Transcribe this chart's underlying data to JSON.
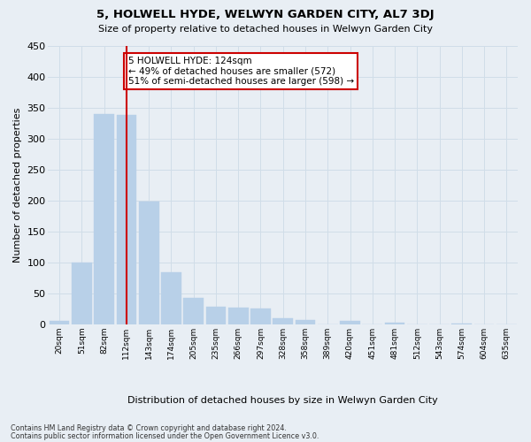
{
  "title": "5, HOLWELL HYDE, WELWYN GARDEN CITY, AL7 3DJ",
  "subtitle": "Size of property relative to detached houses in Welwyn Garden City",
  "xlabel": "Distribution of detached houses by size in Welwyn Garden City",
  "ylabel": "Number of detached properties",
  "bin_labels": [
    "20sqm",
    "51sqm",
    "82sqm",
    "112sqm",
    "143sqm",
    "174sqm",
    "205sqm",
    "235sqm",
    "266sqm",
    "297sqm",
    "328sqm",
    "358sqm",
    "389sqm",
    "420sqm",
    "451sqm",
    "481sqm",
    "512sqm",
    "543sqm",
    "574sqm",
    "604sqm",
    "635sqm"
  ],
  "bar_values": [
    5,
    100,
    340,
    338,
    198,
    84,
    42,
    28,
    27,
    25,
    10,
    6,
    0,
    5,
    0,
    2,
    0,
    0,
    1,
    0,
    0
  ],
  "bar_color": "#b8d0e8",
  "bar_edge_color": "#b8d0e8",
  "grid_color": "#d0dde8",
  "vline_x_index": 3,
  "vline_color": "#cc0000",
  "annotation_text": "5 HOLWELL HYDE: 124sqm\n← 49% of detached houses are smaller (572)\n51% of semi-detached houses are larger (598) →",
  "annotation_box_color": "white",
  "annotation_box_edge": "#cc0000",
  "ylim": [
    0,
    450
  ],
  "yticks": [
    0,
    50,
    100,
    150,
    200,
    250,
    300,
    350,
    400,
    450
  ],
  "footer1": "Contains HM Land Registry data © Crown copyright and database right 2024.",
  "footer2": "Contains public sector information licensed under the Open Government Licence v3.0.",
  "bg_color": "#e8eef4"
}
